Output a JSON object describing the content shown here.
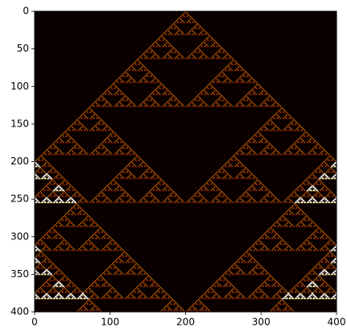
{
  "chart_data": {
    "type": "image",
    "colormap": "hot",
    "xlim": [
      0,
      400
    ],
    "ylim": [
      400,
      0
    ],
    "xticks": [
      0,
      100,
      200,
      300,
      400
    ],
    "yticks": [
      0,
      50,
      100,
      150,
      200,
      250,
      300,
      350,
      400
    ]
  }
}
